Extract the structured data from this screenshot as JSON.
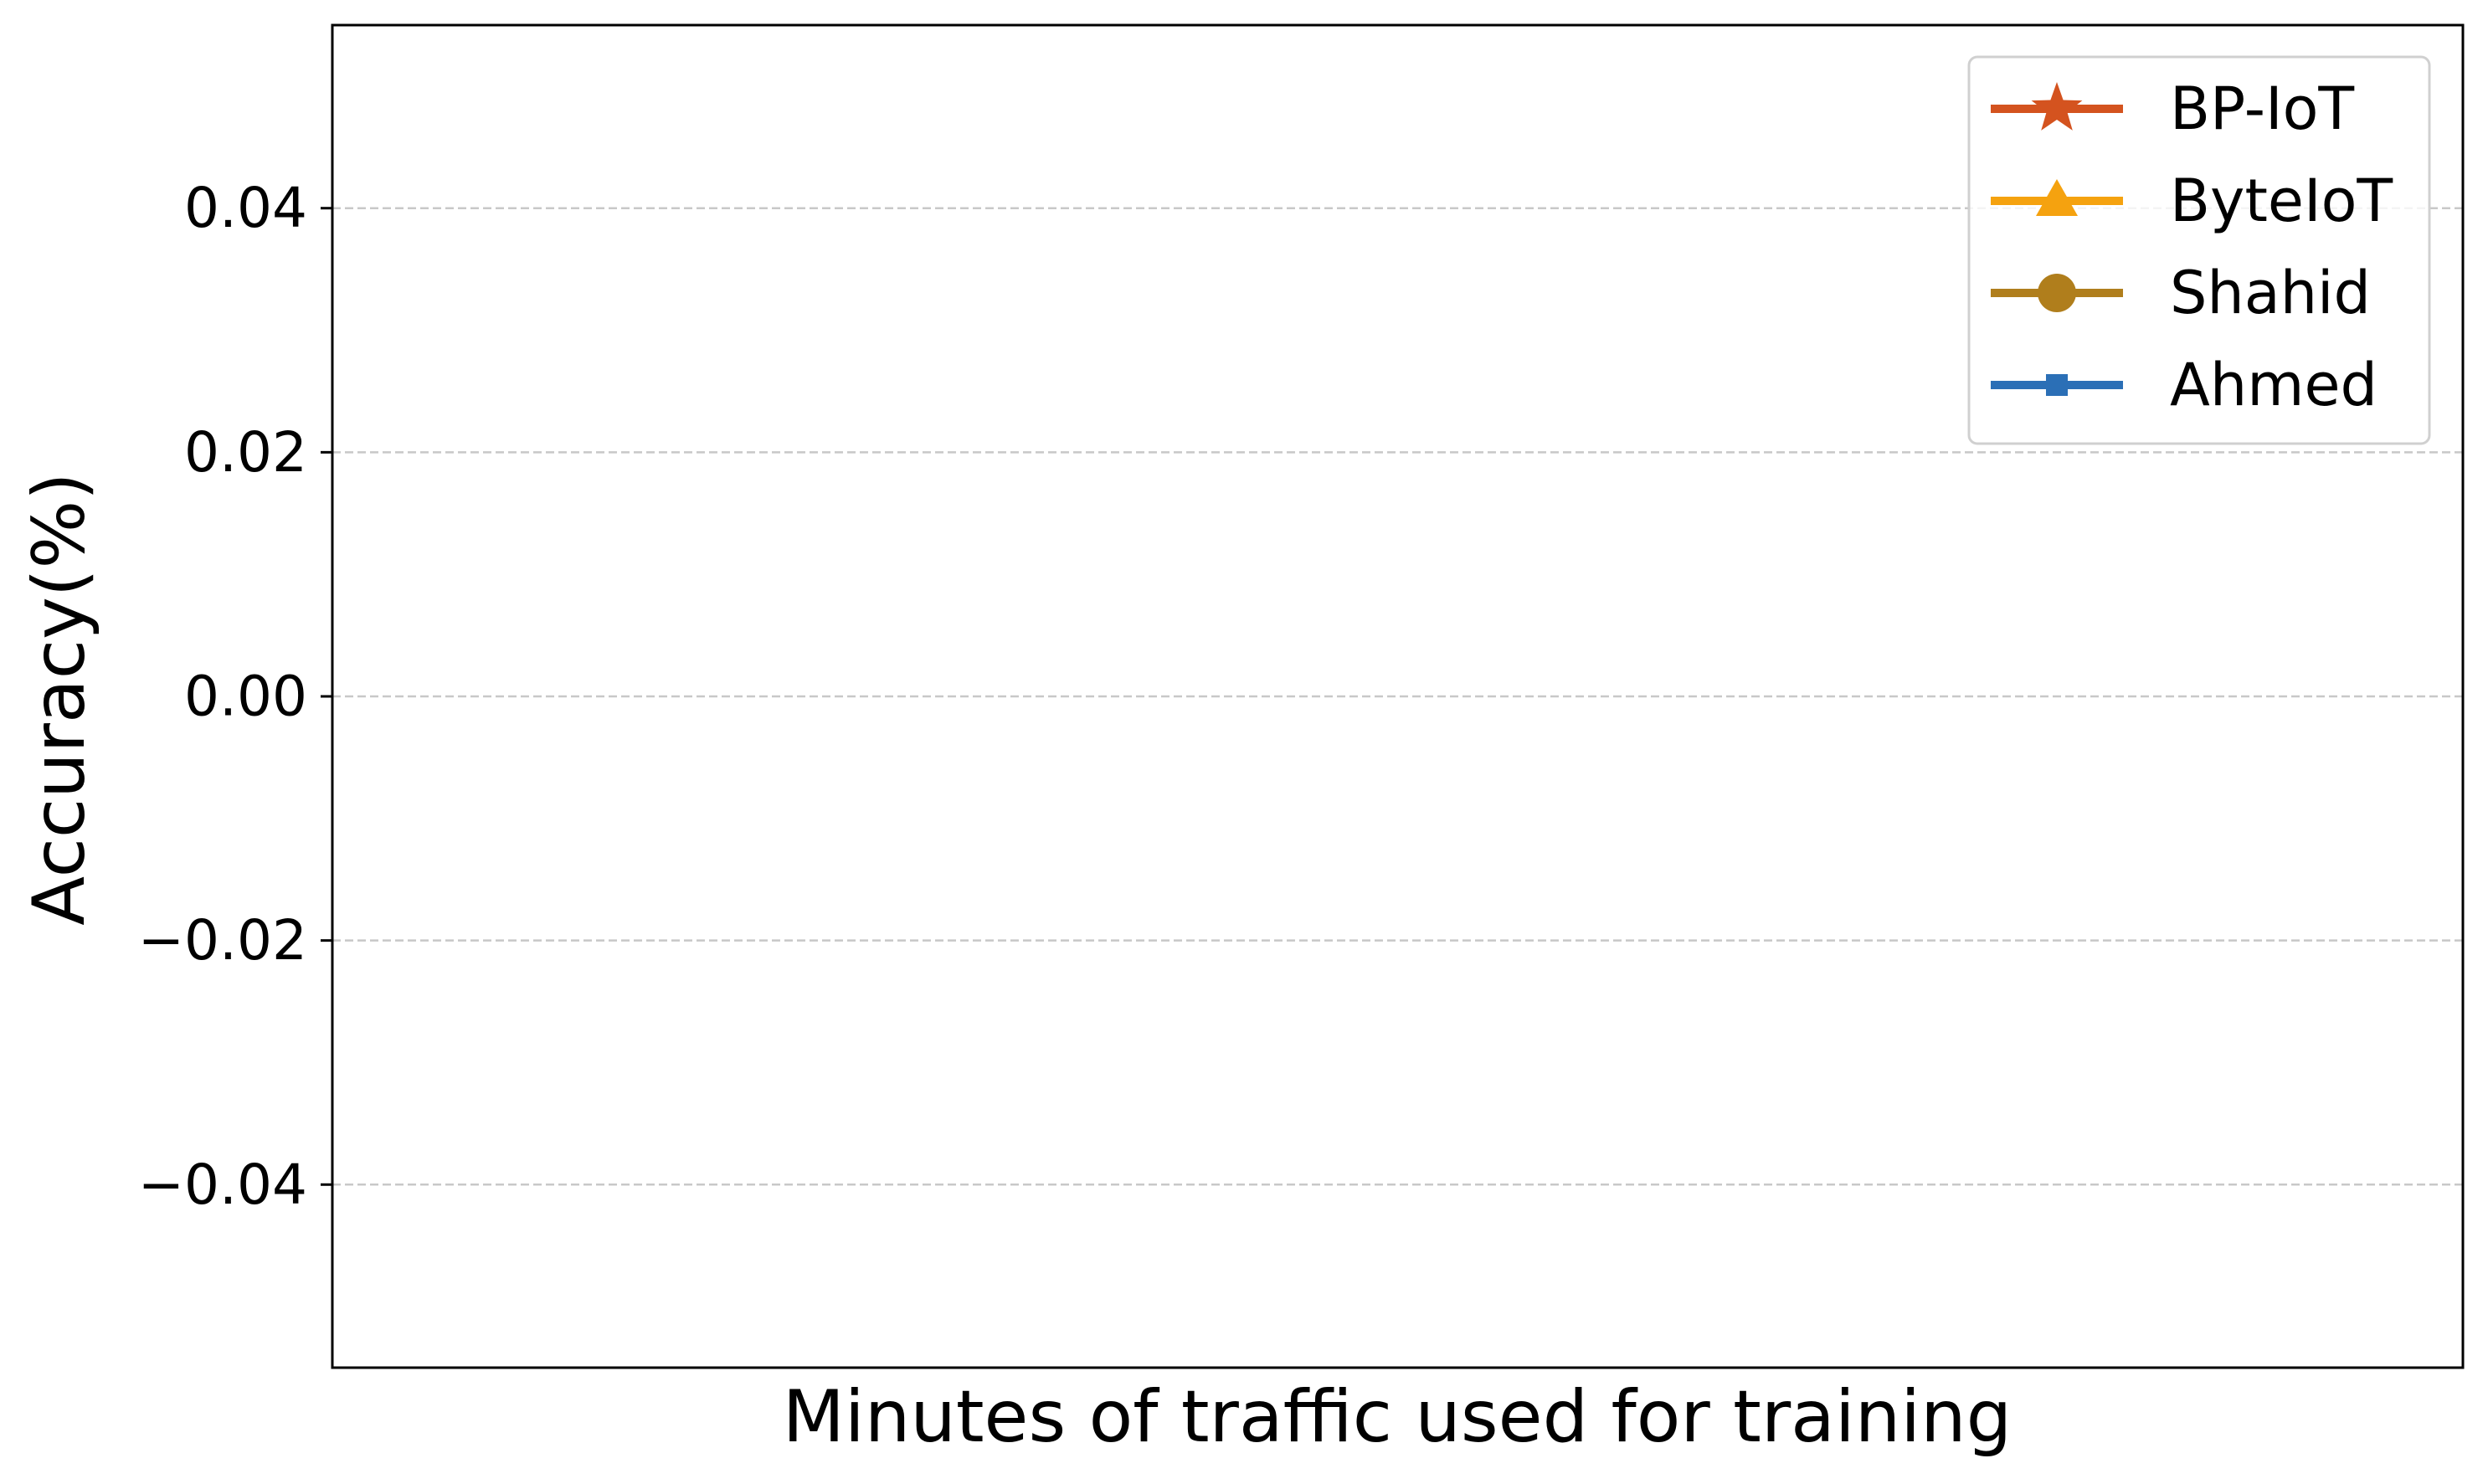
{
  "chart_data": {
    "type": "line",
    "title": "",
    "xlabel": "Minutes of traffic used for training",
    "ylabel": "Accuracy(%)",
    "ylim": [
      -0.055,
      0.055
    ],
    "yticks": [
      -0.04,
      -0.02,
      0.0,
      0.02,
      0.04
    ],
    "ytick_labels": [
      "−0.04",
      "−0.02",
      "0.00",
      "0.02",
      "0.04"
    ],
    "grid": "horizontal-dashed",
    "legend_position": "top-right",
    "series": [
      {
        "name": "BP-IoT",
        "color": "#D4531F",
        "marker": "star",
        "x": [],
        "values": []
      },
      {
        "name": "ByteIoT",
        "color": "#F5A20F",
        "marker": "triangle",
        "x": [],
        "values": []
      },
      {
        "name": "Shahid",
        "color": "#B07E1C",
        "marker": "circle",
        "x": [],
        "values": []
      },
      {
        "name": "Ahmed",
        "color": "#2B6FB6",
        "marker": "square",
        "x": [],
        "values": []
      }
    ]
  }
}
